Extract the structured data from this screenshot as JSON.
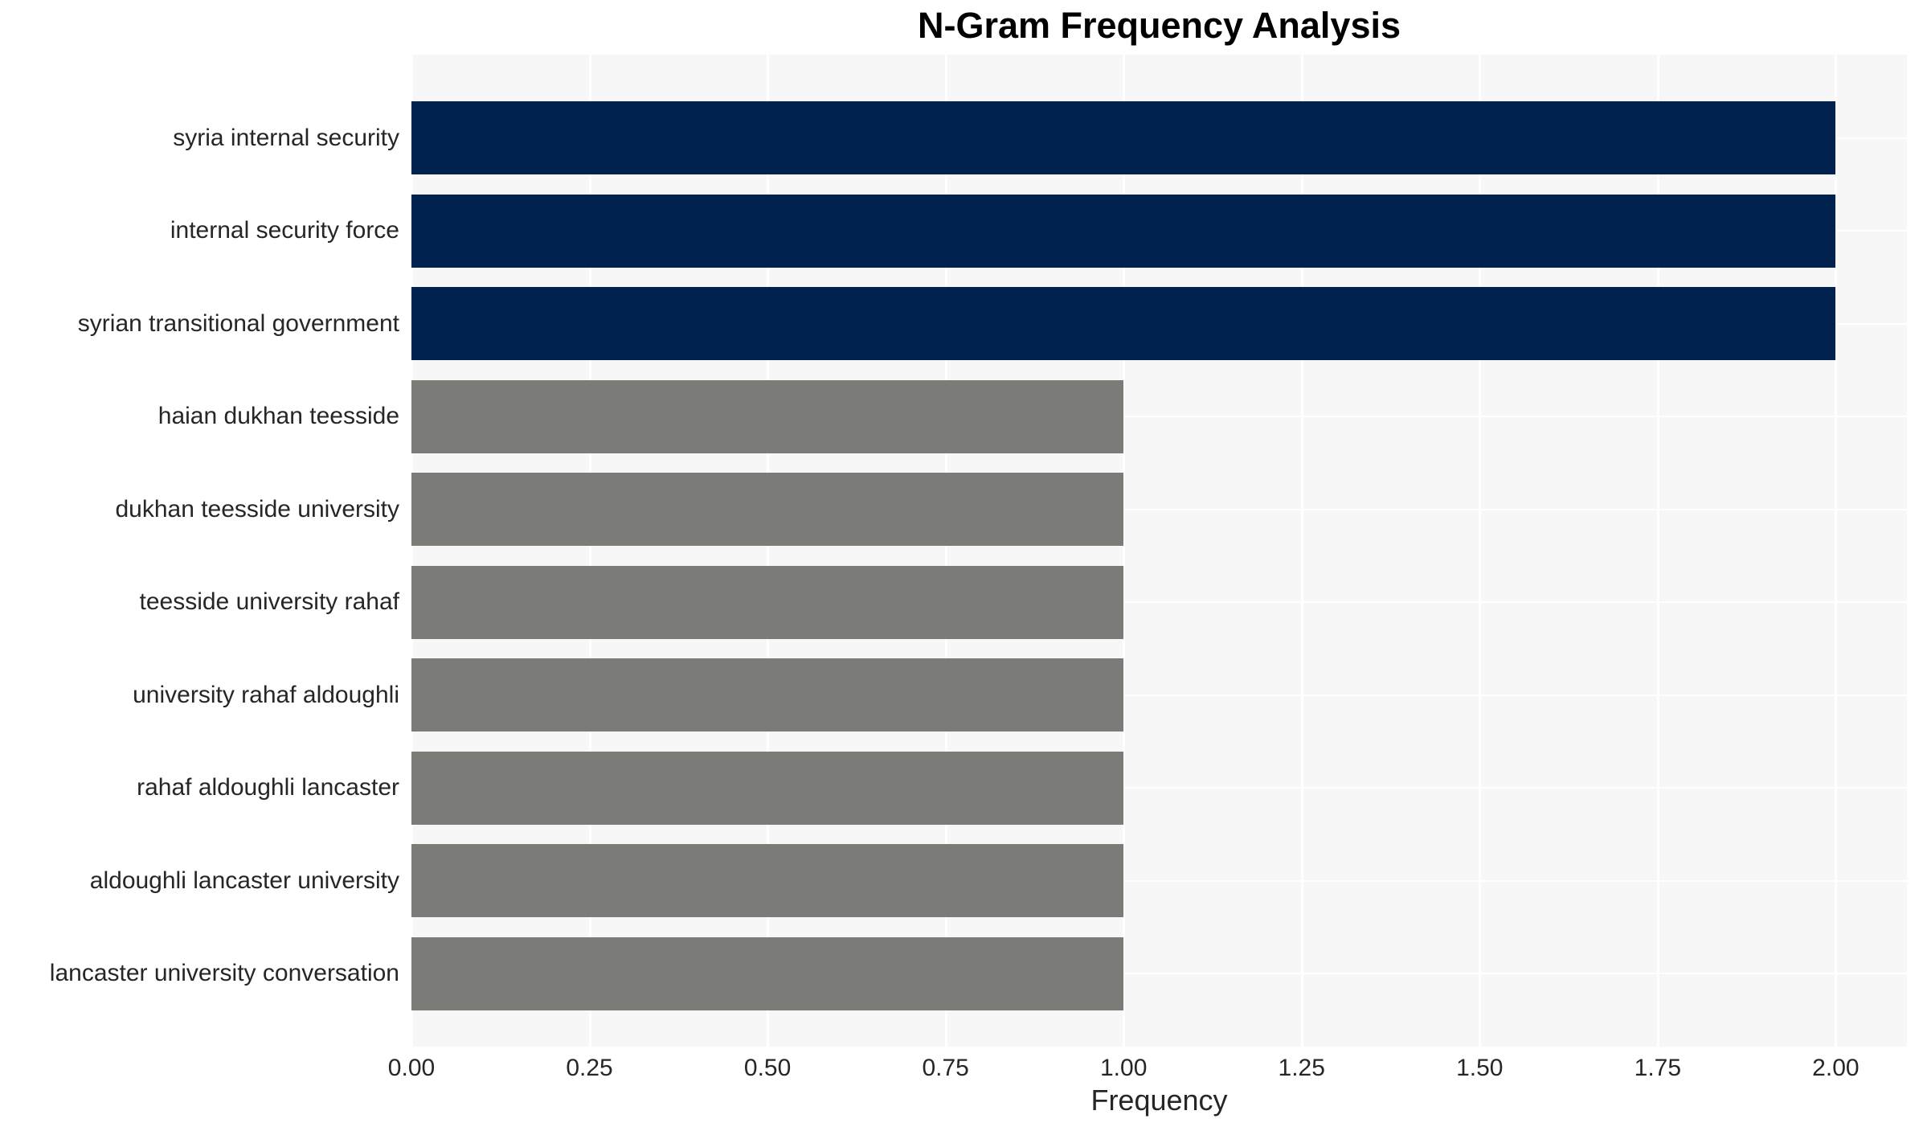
{
  "chart_data": {
    "type": "bar",
    "orientation": "horizontal",
    "title": "N-Gram Frequency Analysis",
    "xlabel": "Frequency",
    "ylabel": "",
    "categories": [
      "syria internal security",
      "internal security force",
      "syrian transitional government",
      "haian dukhan teesside",
      "dukhan teesside university",
      "teesside university rahaf",
      "university rahaf aldoughli",
      "rahaf aldoughli lancaster",
      "aldoughli lancaster university",
      "lancaster university conversation"
    ],
    "values": [
      2,
      2,
      2,
      1,
      1,
      1,
      1,
      1,
      1,
      1
    ],
    "bar_colors": [
      "#01224e",
      "#01224e",
      "#01224e",
      "#7b7b77",
      "#7b7b77",
      "#7b7b77",
      "#7b7b77",
      "#7b7b77",
      "#7b7b77",
      "#7b7b77"
    ],
    "xlim": [
      0,
      2.1
    ],
    "xticks": [
      0,
      0.25,
      0.5,
      0.75,
      1.0,
      1.25,
      1.5,
      1.75,
      2.0
    ],
    "xtick_labels": [
      "0.00",
      "0.25",
      "0.50",
      "0.75",
      "1.00",
      "1.25",
      "1.50",
      "1.75",
      "2.00"
    ],
    "grid": true,
    "legend": false
  },
  "style": {
    "navy_bar_color": "#01224e",
    "gray_bar_color": "#7b7b77",
    "panel_background": "#f7f7f7",
    "grid_color": "#ffffff",
    "text_color": "#262626",
    "title_color": "#000000"
  }
}
